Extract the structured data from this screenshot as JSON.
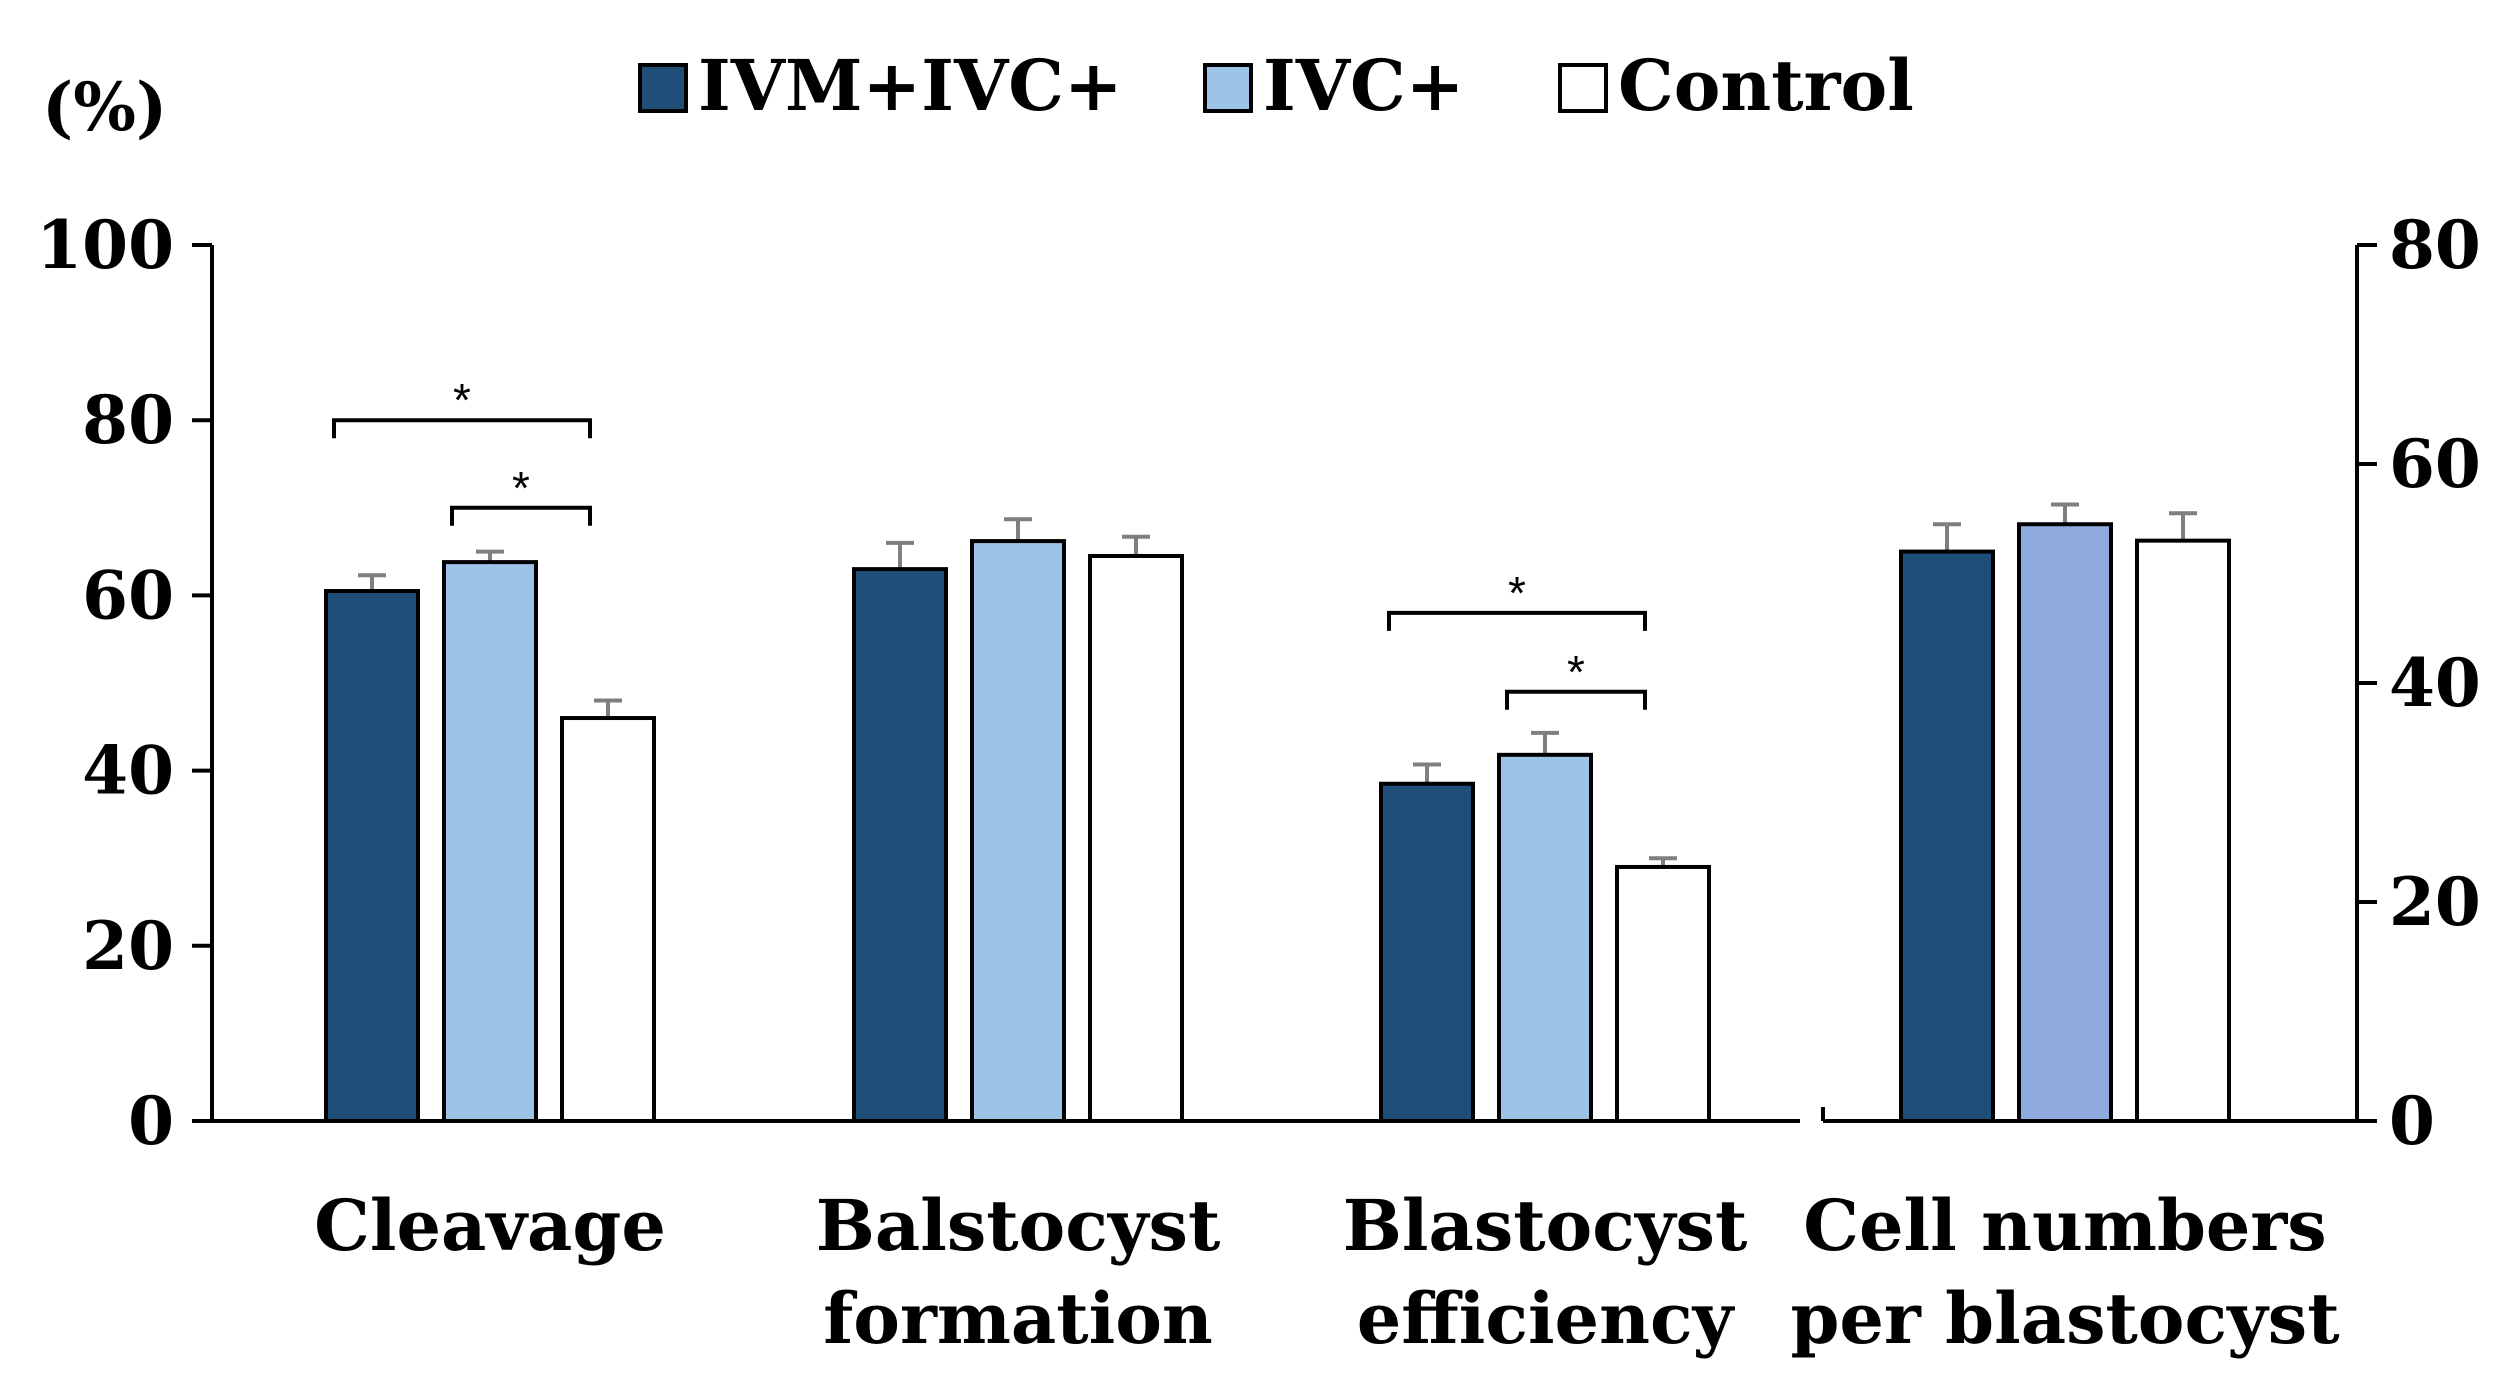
{
  "chart_data": {
    "type": "bar",
    "y_unit_label": "(%)",
    "categories": [
      {
        "lines": [
          "Cleavage"
        ],
        "axis": "left"
      },
      {
        "lines": [
          "Balstocyst",
          "formation"
        ],
        "axis": "left"
      },
      {
        "lines": [
          "Blastocyst",
          "efficiency"
        ],
        "axis": "left"
      },
      {
        "lines": [
          "Cell numbers",
          "per blastocyst"
        ],
        "axis": "right"
      }
    ],
    "series": [
      {
        "name": "IVM+IVC+",
        "color": "#1f4e79",
        "values": [
          60.5,
          63,
          38.5,
          52
        ],
        "errors": [
          1.8,
          3,
          2.2,
          2.5
        ]
      },
      {
        "name": "IVC+",
        "color": "#9dc3e6",
        "color_last": "#8faadc",
        "values": [
          63.8,
          66.2,
          41.8,
          54.5
        ],
        "errors": [
          1.2,
          2.5,
          2.5,
          1.8
        ]
      },
      {
        "name": "Control",
        "color": "#ffffff",
        "values": [
          46,
          64.5,
          29,
          53
        ],
        "errors": [
          2,
          2.2,
          1,
          2.5
        ]
      }
    ],
    "left_axis": {
      "min": 0,
      "max": 100,
      "ticks": [
        0,
        20,
        40,
        60,
        80,
        100
      ]
    },
    "right_axis": {
      "min": 0,
      "max": 80,
      "ticks": [
        0,
        20,
        40,
        60,
        80
      ]
    },
    "significance": [
      {
        "category": 0,
        "from": 0,
        "to": 2,
        "level": 80,
        "label": "*"
      },
      {
        "category": 0,
        "from": 1,
        "to": 2,
        "level": 70,
        "label": "*"
      },
      {
        "category": 2,
        "from": 0,
        "to": 2,
        "level": 58,
        "label": "*"
      },
      {
        "category": 2,
        "from": 1,
        "to": 2,
        "level": 49,
        "label": "*"
      }
    ],
    "legend_position": "top"
  }
}
